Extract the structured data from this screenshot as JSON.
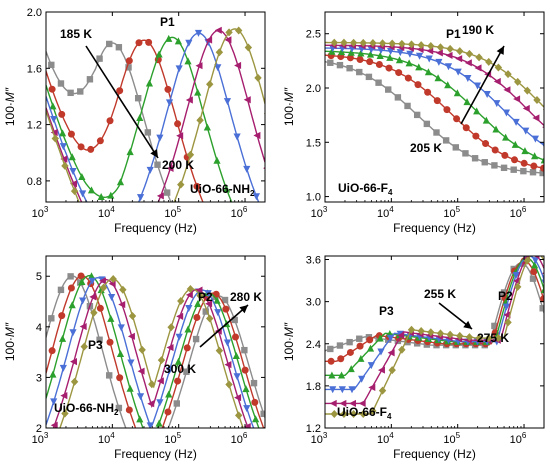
{
  "figure": {
    "ylabel_prefix": "100·",
    "ylabel_var": "M″",
    "xlabel": "Frequency (Hz)",
    "x_ticks": [
      {
        "base": "10",
        "exp": "3"
      },
      {
        "base": "10",
        "exp": "4"
      },
      {
        "base": "10",
        "exp": "5"
      },
      {
        "base": "10",
        "exp": "6"
      }
    ],
    "series_colors": [
      "#8c8c8c",
      "#c0392b",
      "#2ca02c",
      "#4a6fd6",
      "#a61e6e",
      "#9c9641"
    ],
    "series_markers": [
      "square",
      "circle",
      "triangle-up",
      "triangle-down",
      "triangle-left",
      "diamond"
    ]
  },
  "chart_data": [
    {
      "id": "a",
      "type": "line",
      "sample_name": "UiO-66-NH",
      "sample_sub": "2",
      "peak_label": "P1",
      "temp_start": "185 K",
      "temp_end": "200 K",
      "x_scale": "log",
      "xlim": [
        1000,
        2000000
      ],
      "ylim": [
        0.65,
        2.0
      ],
      "y_ticks": [
        "0.8",
        "1.2",
        "1.6",
        "2.0"
      ],
      "y_tick_values": [
        0.8,
        1.2,
        1.6,
        2.0
      ],
      "peaks": [
        {
          "type": "debye",
          "series": [
            {
              "A": 1.78,
              "fp": 10000,
              "b": 0.82
            },
            {
              "A": 1.8,
              "fp": 30000,
              "b": 0.82
            },
            {
              "A": 1.82,
              "fp": 80000,
              "b": 0.82
            },
            {
              "A": 1.85,
              "fp": 200000,
              "b": 0.82
            },
            {
              "A": 1.87,
              "fp": 400000,
              "b": 0.82
            },
            {
              "A": 1.88,
              "fp": 700000,
              "b": 0.82
            }
          ]
        }
      ],
      "offsets": [
        0,
        0,
        0,
        0,
        0,
        0
      ],
      "scatter_lowf": [
        [
          1.72,
          1.6
        ],
        [
          1.58,
          1.45
        ],
        [
          1.48,
          1.35
        ],
        [
          1.4,
          1.28
        ],
        [
          1.32,
          1.18
        ],
        [
          1.3,
          1.12
        ]
      ]
    },
    {
      "id": "b",
      "type": "line",
      "sample_name": "UiO-66-F",
      "sample_sub": "4",
      "peak_label": "P1",
      "temp_start": "190 K",
      "temp_end": "205 K",
      "x_scale": "log",
      "xlim": [
        1000,
        2000000
      ],
      "ylim": [
        0.95,
        2.7
      ],
      "y_ticks": [
        "1.0",
        "1.5",
        "2.0",
        "2.5"
      ],
      "y_tick_values": [
        1.0,
        1.5,
        2.0,
        2.5
      ],
      "plateau": [
        2.3,
        2.32,
        2.34,
        2.36,
        2.38,
        2.4
      ],
      "knee": [
        25000,
        80000,
        200000,
        500000,
        1100000,
        2000000
      ],
      "end_val": [
        0.95,
        1.35,
        1.65,
        1.9,
        2.15,
        2.3
      ]
    },
    {
      "id": "c",
      "type": "line",
      "sample_name": "UiO-66-NH",
      "sample_sub": "2",
      "peak_labels": [
        "P2",
        "P3"
      ],
      "temp_start": "300 K",
      "temp_end": "280 K",
      "x_scale": "log",
      "xlim": [
        1000,
        2000000
      ],
      "ylim": [
        2.0,
        5.4
      ],
      "y_ticks": [
        "2",
        "3",
        "4",
        "5"
      ],
      "y_tick_values": [
        2,
        3,
        4,
        5
      ],
      "p3_freq": [
        2500,
        3500,
        4500,
        6000,
        8000,
        10000
      ],
      "p3_amp": [
        5.1,
        5.1,
        5.1,
        5.05,
        5.0,
        5.0
      ],
      "p2_freq": [
        400000,
        330000,
        280000,
        230000,
        190000,
        160000
      ],
      "p2_amp": [
        4.7,
        4.75,
        4.75,
        4.8,
        4.8,
        4.8
      ]
    },
    {
      "id": "d",
      "type": "line",
      "sample_name": "UiO-66-F",
      "sample_sub": "4",
      "peak_labels": [
        "P3",
        "P2"
      ],
      "temp_start": "255 K",
      "temp_end": "275 K",
      "x_scale": "log",
      "xlim": [
        1000,
        2000000
      ],
      "ylim": [
        1.2,
        3.65
      ],
      "y_ticks": [
        "1.2",
        "1.8",
        "2.4",
        "3.0",
        "3.6"
      ],
      "y_tick_values": [
        1.2,
        1.8,
        2.4,
        3.0,
        3.6
      ],
      "p3_freq": [
        4000,
        6000,
        8000,
        11000,
        15000,
        20000
      ],
      "p3_amp": [
        2.5,
        2.52,
        2.55,
        2.55,
        2.57,
        2.6
      ],
      "p2_freq": [
        900000,
        1000000,
        1100000,
        1200000,
        1350000,
        1500000
      ],
      "p2_amp": [
        3.35,
        3.38,
        3.42,
        3.45,
        3.48,
        3.5
      ],
      "low_start": [
        2.3,
        2.15,
        1.95,
        1.75,
        1.55,
        1.4
      ]
    }
  ]
}
